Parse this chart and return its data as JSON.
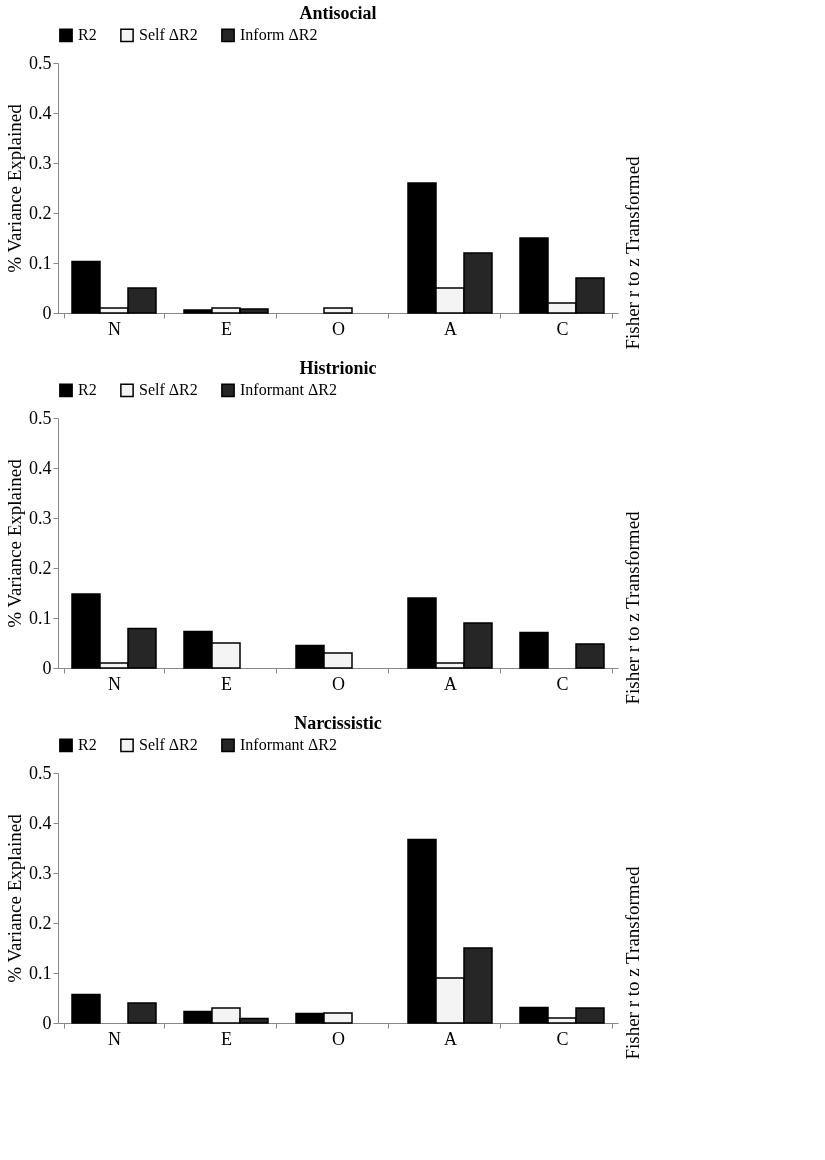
{
  "chart_data": [
    {
      "type": "bar",
      "title": "Antisocial",
      "ylabel": "% Variance Explained",
      "y2label": "Fisher r to z Transformed",
      "categories": [
        "N",
        "E",
        "O",
        "A",
        "C"
      ],
      "ylim": [
        0,
        0.5
      ],
      "yticks": [
        0,
        0.1,
        0.2,
        0.3,
        0.4,
        0.5
      ],
      "grid": false,
      "legend": "top",
      "series": [
        {
          "name": "R2",
          "color": "#000000",
          "values": [
            0.103,
            0.006,
            null,
            0.26,
            0.15
          ]
        },
        {
          "name": "Self ΔR2",
          "color": "#f4f4f4",
          "values": [
            0.01,
            0.01,
            0.01,
            0.05,
            0.02
          ]
        },
        {
          "name": "Inform ΔR2",
          "color": "#262626",
          "values": [
            0.05,
            0.008,
            null,
            0.12,
            0.07
          ]
        }
      ]
    },
    {
      "type": "bar",
      "title": "Histrionic",
      "ylabel": "% Variance Explained",
      "y2label": "Fisher r to z Transformed",
      "categories": [
        "N",
        "E",
        "O",
        "A",
        "C"
      ],
      "ylim": [
        0,
        0.5
      ],
      "yticks": [
        0,
        0.1,
        0.2,
        0.3,
        0.4,
        0.5
      ],
      "grid": false,
      "legend": "top",
      "series": [
        {
          "name": "R2",
          "color": "#000000",
          "values": [
            0.148,
            0.073,
            0.045,
            0.14,
            0.071
          ]
        },
        {
          "name": "Self ΔR2",
          "color": "#f4f4f4",
          "values": [
            0.01,
            0.05,
            0.03,
            0.01,
            null
          ]
        },
        {
          "name": "Informant ΔR2",
          "color": "#262626",
          "values": [
            0.079,
            null,
            null,
            0.09,
            0.048
          ]
        }
      ]
    },
    {
      "type": "bar",
      "title": "Narcissistic",
      "ylabel": "% Variance Explained",
      "y2label": "Fisher r to z Transformed",
      "categories": [
        "N",
        "E",
        "O",
        "A",
        "C"
      ],
      "ylim": [
        0,
        0.5
      ],
      "yticks": [
        0,
        0.1,
        0.2,
        0.3,
        0.4,
        0.5
      ],
      "grid": false,
      "legend": "top",
      "series": [
        {
          "name": "R2",
          "color": "#000000",
          "values": [
            0.057,
            0.023,
            0.019,
            0.367,
            0.031
          ]
        },
        {
          "name": "Self ΔR2",
          "color": "#f4f4f4",
          "values": [
            null,
            0.03,
            0.02,
            0.09,
            0.01
          ]
        },
        {
          "name": "Informant ΔR2",
          "color": "#262626",
          "values": [
            0.04,
            0.009,
            null,
            0.15,
            0.03
          ]
        }
      ]
    }
  ]
}
